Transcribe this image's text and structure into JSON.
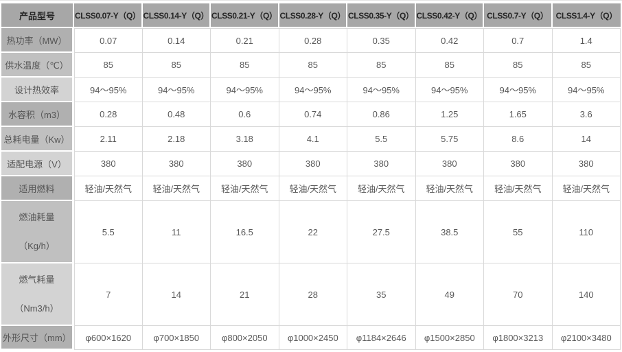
{
  "table": {
    "corner_header": "产品型号",
    "columns": [
      "CLSS0.07-Y（Q）",
      "CLSS0.14-Y（Q）",
      "CLSS0.21-Y（Q）",
      "CLSS0.28-Y（Q）",
      "CLSS0.35-Y（Q）",
      "CLSS0.42-Y（Q）",
      "CLSS0.7-Y（Q）",
      "CLSS1.4-Y（Q）"
    ],
    "rows": [
      {
        "label_lines": [
          "热功率（MW）"
        ],
        "shade": "a",
        "tall": false,
        "values": [
          "0.07",
          "0.14",
          "0.21",
          "0.28",
          "0.35",
          "0.42",
          "0.7",
          "1.4"
        ]
      },
      {
        "label_lines": [
          "供水温度（℃）"
        ],
        "shade": "b",
        "tall": false,
        "values": [
          "85",
          "85",
          "85",
          "85",
          "85",
          "85",
          "85",
          "85"
        ]
      },
      {
        "label_lines": [
          "设计热效率"
        ],
        "shade": "c",
        "tall": false,
        "values": [
          "94～95%",
          "94～95%",
          "94～95%",
          "94～95%",
          "94～95%",
          "94～95%",
          "94～95%",
          "94～95%"
        ]
      },
      {
        "label_lines": [
          "水容积（m3）"
        ],
        "shade": "a",
        "tall": false,
        "values": [
          "0.28",
          "0.48",
          "0.6",
          "0.74",
          "0.86",
          "1.25",
          "1.65",
          "3.6"
        ]
      },
      {
        "label_lines": [
          "总耗电量（Kw）"
        ],
        "shade": "b",
        "tall": false,
        "values": [
          "2.11",
          "2.18",
          "3.18",
          "4.1",
          "5.5",
          "5.75",
          "8.6",
          "14"
        ]
      },
      {
        "label_lines": [
          "适配电源（V）"
        ],
        "shade": "c",
        "tall": false,
        "values": [
          "380",
          "380",
          "380",
          "380",
          "380",
          "380",
          "380",
          "380"
        ]
      },
      {
        "label_lines": [
          "适用燃料"
        ],
        "shade": "a",
        "tall": false,
        "values": [
          "轻油/天然气",
          "轻油/天然气",
          "轻油/天然气",
          "轻油/天然气",
          "轻油/天然气",
          "轻油/天然气",
          "轻油/天然气",
          "轻油/天然气"
        ]
      },
      {
        "label_lines": [
          "燃油耗量",
          "（Kg/h）"
        ],
        "shade": "b",
        "tall": true,
        "values": [
          "5.5",
          "11",
          "16.5",
          "22",
          "27.5",
          "38.5",
          "55",
          "110"
        ]
      },
      {
        "label_lines": [
          "燃气耗量",
          "（Nm3/h）"
        ],
        "shade": "c",
        "tall": true,
        "values": [
          "7",
          "14",
          "21",
          "28",
          "35",
          "49",
          "70",
          "140"
        ]
      },
      {
        "label_lines": [
          "外形尺寸（mm）"
        ],
        "shade": "a",
        "tall": false,
        "values": [
          "φ600×1620",
          "φ700×1850",
          "φ800×2050",
          "φ1000×2450",
          "φ1184×2646",
          "φ1500×2850",
          "φ1800×3213",
          "φ2100×3480"
        ]
      }
    ],
    "colors": {
      "header_bg": "#a7a7a7",
      "header_text": "#262626",
      "label_bg_a": "#b0b0b0",
      "label_bg_b": "#c0c0c0",
      "label_bg_c": "#d3d3d3",
      "label_text": "#555555",
      "value_text": "#595959",
      "grid_line": "#d9d9d9",
      "cell_bg": "#ffffff"
    }
  }
}
